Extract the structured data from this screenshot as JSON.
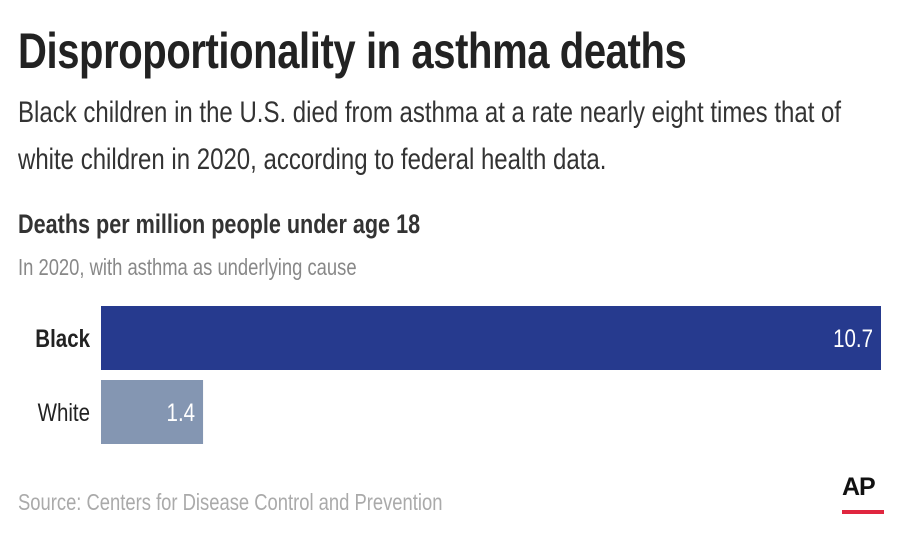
{
  "title": "Disproportionality in asthma deaths",
  "subtitle_line1": "Black children in the U.S. died from asthma at a rate nearly eight times that of",
  "subtitle_line2": "white children in 2020, according to federal health data.",
  "source": "Source: Centers for Disease Control and Prevention",
  "logo": "AP",
  "colors": {
    "black_bar": "#263a8e",
    "white_bar": "#8496b2",
    "logo_rule": "#e0263f"
  },
  "chart_data": {
    "type": "bar",
    "orientation": "horizontal",
    "title": "Deaths per million people under age 18",
    "subtitle": "In 2020, with asthma as underlying cause",
    "categories": [
      "Black",
      "White"
    ],
    "values": [
      10.7,
      1.4
    ],
    "data_labels": [
      "10.7",
      "1.4"
    ],
    "grid": false
  }
}
